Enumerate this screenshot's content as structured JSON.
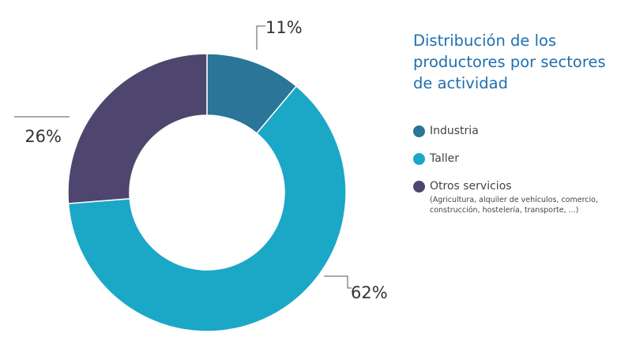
{
  "chart_data": {
    "type": "pie",
    "title": "Distribución de los productores por sectores de actividad",
    "series": [
      {
        "name": "Industria",
        "value": 11,
        "label": "11%",
        "color": "#2a7598",
        "note": ""
      },
      {
        "name": "Taller",
        "value": 62,
        "label": "62%",
        "color": "#1ba7c6",
        "note": ""
      },
      {
        "name": "Otros servicios",
        "value": 26,
        "label": "26%",
        "color": "#4e466f",
        "note": "(Agricultura, alquiler de vehículos, comercio, construcción, hostelería, transporte, ...)"
      }
    ],
    "legend_position": "right"
  }
}
